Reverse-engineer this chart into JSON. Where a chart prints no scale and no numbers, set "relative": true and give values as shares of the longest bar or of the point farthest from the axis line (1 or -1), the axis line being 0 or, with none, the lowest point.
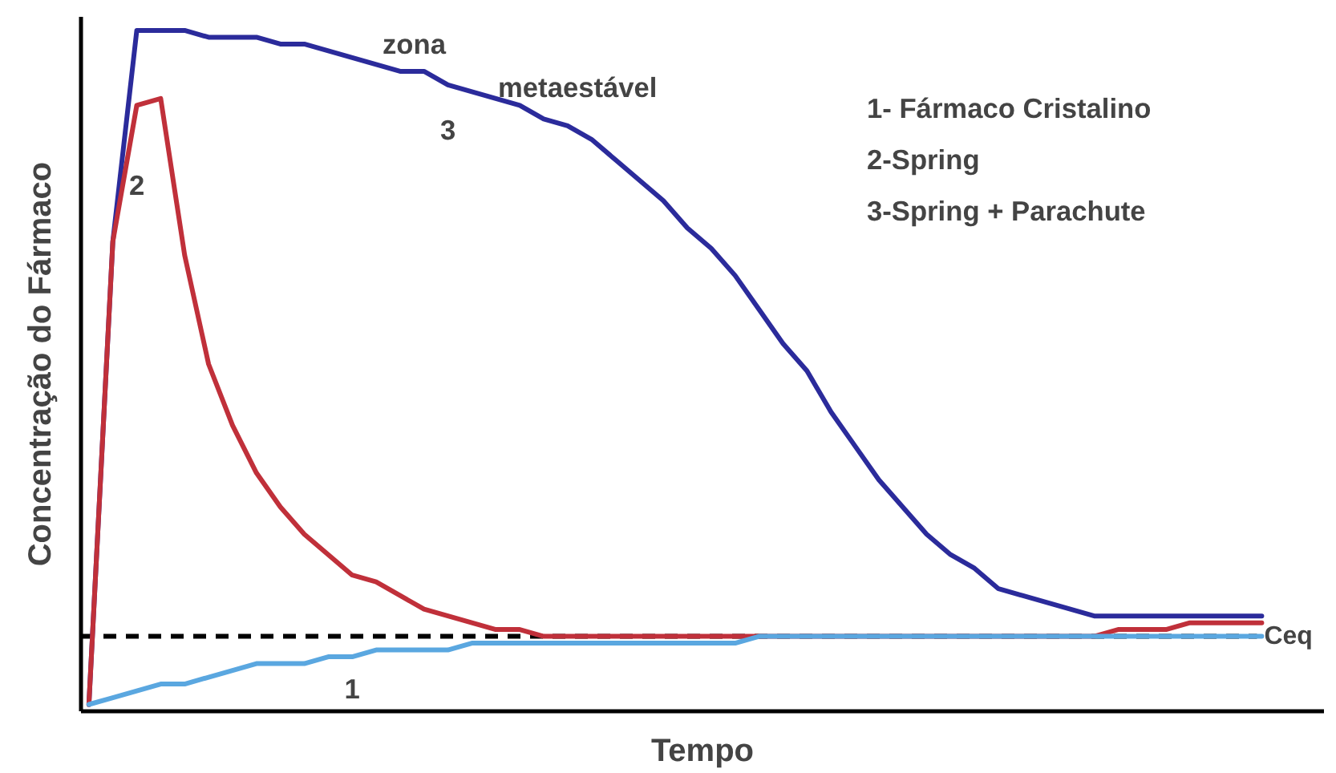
{
  "chart_data": {
    "type": "line",
    "relative": true,
    "xlabel": "Tempo",
    "ylabel": "Concentração do Fármaco",
    "legend": false,
    "grid": false,
    "tick_labels": false,
    "categories": [
      null,
      null,
      null,
      null,
      null,
      null,
      null,
      null,
      null,
      null,
      null,
      null,
      null,
      null,
      null,
      null,
      null,
      null,
      null,
      null,
      null,
      null,
      null,
      null,
      null,
      null,
      null,
      null,
      null,
      null,
      null,
      null,
      null,
      null,
      null,
      null,
      null,
      null,
      null,
      null,
      null,
      null,
      null,
      null,
      null,
      null,
      null,
      null,
      null,
      null
    ],
    "series": [
      {
        "name": "1",
        "color": "#5aa7e0",
        "values": [
          0.01,
          0.02,
          0.03,
          0.04,
          0.04,
          0.05,
          0.06,
          0.07,
          0.07,
          0.07,
          0.08,
          0.08,
          0.09,
          0.09,
          0.09,
          0.09,
          0.1,
          0.1,
          0.1,
          0.1,
          0.1,
          0.1,
          0.1,
          0.1,
          0.1,
          0.1,
          0.1,
          0.1,
          0.11,
          0.11,
          0.11,
          0.11,
          0.11,
          0.11,
          0.11,
          0.11,
          0.11,
          0.11,
          0.11,
          0.11,
          0.11,
          0.11,
          0.11,
          0.11,
          0.11,
          0.11,
          0.11,
          0.11,
          0.11,
          0.11
        ]
      },
      {
        "name": "2",
        "color": "#c0303a",
        "values": [
          0.01,
          0.69,
          0.89,
          0.9,
          0.67,
          0.51,
          0.42,
          0.35,
          0.3,
          0.26,
          0.23,
          0.2,
          0.19,
          0.17,
          0.15,
          0.14,
          0.13,
          0.12,
          0.12,
          0.11,
          0.11,
          0.11,
          0.11,
          0.11,
          0.11,
          0.11,
          0.11,
          0.11,
          0.11,
          0.11,
          0.11,
          0.11,
          0.11,
          0.11,
          0.11,
          0.11,
          0.11,
          0.11,
          0.11,
          0.11,
          0.11,
          0.11,
          0.11,
          0.12,
          0.12,
          0.12,
          0.13,
          0.13,
          0.13,
          0.13
        ]
      },
      {
        "name": "3",
        "color": "#2b2b9b",
        "values": [
          0.01,
          0.69,
          1,
          1,
          1,
          0.99,
          0.99,
          0.99,
          0.98,
          0.98,
          0.97,
          0.96,
          0.95,
          0.94,
          0.94,
          0.92,
          0.91,
          0.9,
          0.89,
          0.87,
          0.86,
          0.84,
          0.81,
          0.78,
          0.75,
          0.71,
          0.68,
          0.64,
          0.59,
          0.54,
          0.5,
          0.44,
          0.39,
          0.34,
          0.3,
          0.26,
          0.23,
          0.21,
          0.18,
          0.17,
          0.16,
          0.15,
          0.14,
          0.14,
          0.14,
          0.14,
          0.14,
          0.14,
          0.14,
          0.14
        ]
      }
    ],
    "ref_lines": [
      {
        "axis": "y",
        "value": 0.11,
        "label": "Ceq",
        "color": "#000000",
        "line_style": "dashed"
      }
    ],
    "annotations": [
      "zona",
      "metaestável",
      "1- Fármaco Cristalino",
      "2-Spring",
      "3-Spring + Parachute"
    ]
  }
}
